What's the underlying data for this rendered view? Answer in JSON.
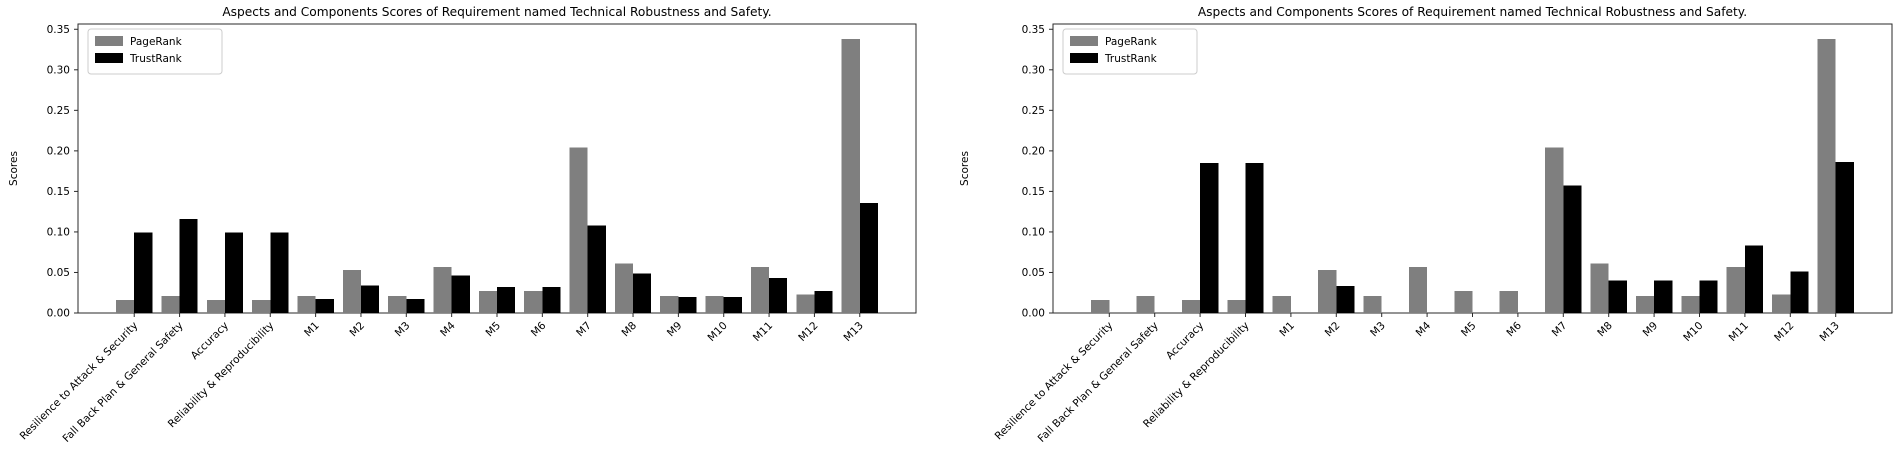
{
  "figure": {
    "background": "#ffffff",
    "text_color": "#000000",
    "spine_color": "#2a2a2a"
  },
  "chart_data": [
    {
      "type": "bar",
      "title": "Aspects and Components Scores of Requirement named Technical Robustness and Safety.",
      "xlabel": "",
      "ylabel": "Scores",
      "ylim": [
        0,
        0.3565
      ],
      "yticks": [
        0.0,
        0.05,
        0.1,
        0.15,
        0.2,
        0.25,
        0.3,
        0.35
      ],
      "grid": false,
      "legend_position": "upper left",
      "categories": [
        "Resilience to Attack & Security",
        "Fall Back Plan & General Safety",
        "Accuracy",
        "Reliability & Reproducibility",
        "M1",
        "M2",
        "M3",
        "M4",
        "M5",
        "M6",
        "M7",
        "M8",
        "M9",
        "M10",
        "M11",
        "M12",
        "M13"
      ],
      "series": [
        {
          "name": "PageRank",
          "color": "#7f7f7f",
          "values": [
            0.016,
            0.021,
            0.016,
            0.016,
            0.021,
            0.053,
            0.021,
            0.057,
            0.027,
            0.027,
            0.204,
            0.061,
            0.021,
            0.021,
            0.057,
            0.023,
            0.338
          ]
        },
        {
          "name": "TrustRank",
          "color": "#000000",
          "values": [
            0.099,
            0.116,
            0.099,
            0.099,
            0.017,
            0.034,
            0.017,
            0.046,
            0.032,
            0.032,
            0.108,
            0.049,
            0.02,
            0.02,
            0.043,
            0.027,
            0.136
          ]
        }
      ]
    },
    {
      "type": "bar",
      "title": "Aspects and Components Scores of Requirement named Technical Robustness and Safety.",
      "xlabel": "",
      "ylabel": "Scores",
      "ylim": [
        0,
        0.3565
      ],
      "yticks": [
        0.0,
        0.05,
        0.1,
        0.15,
        0.2,
        0.25,
        0.3,
        0.35
      ],
      "grid": false,
      "legend_position": "upper left",
      "categories": [
        "Resilience to Attack & Security",
        "Fall Back Plan & General Safety",
        "Accuracy",
        "Reliability & Reproducibility",
        "M1",
        "M2",
        "M3",
        "M4",
        "M5",
        "M6",
        "M7",
        "M8",
        "M9",
        "M10",
        "M11",
        "M12",
        "M13"
      ],
      "series": [
        {
          "name": "PageRank",
          "color": "#7f7f7f",
          "values": [
            0.016,
            0.021,
            0.016,
            0.016,
            0.021,
            0.053,
            0.021,
            0.057,
            0.027,
            0.027,
            0.204,
            0.061,
            0.021,
            0.021,
            0.057,
            0.023,
            0.338
          ]
        },
        {
          "name": "TrustRank",
          "color": "#000000",
          "values": [
            0.0,
            0.0,
            0.185,
            0.185,
            0.0,
            0.033,
            0.0,
            0.0,
            0.0,
            0.0,
            0.157,
            0.04,
            0.04,
            0.04,
            0.083,
            0.051,
            0.186
          ]
        }
      ]
    }
  ]
}
